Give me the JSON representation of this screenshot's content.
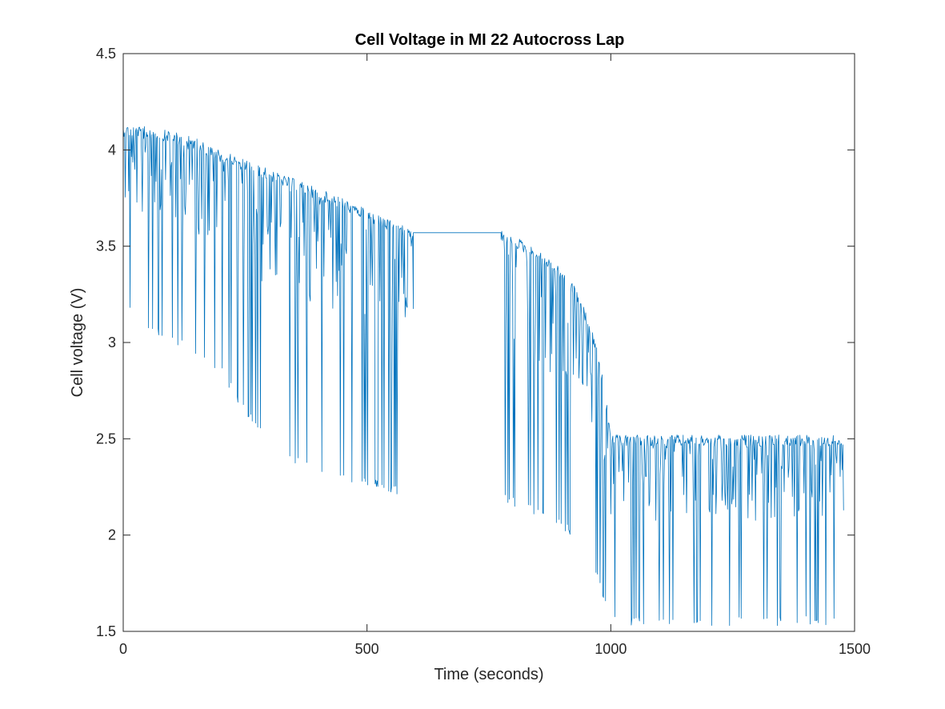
{
  "chart_data": {
    "type": "line",
    "title": "Cell Voltage in MI 22 Autocross Lap",
    "xlabel": "Time (seconds)",
    "ylabel": "Cell voltage (V)",
    "xlim": [
      0,
      1500
    ],
    "ylim": [
      1.5,
      4.5
    ],
    "xticks": [
      0,
      500,
      1000,
      1500
    ],
    "xtick_labels": [
      "0",
      "500",
      "1000",
      "1500"
    ],
    "yticks": [
      1.5,
      2,
      2.5,
      3,
      3.5,
      4,
      4.5
    ],
    "ytick_labels": [
      "1.5",
      "2",
      "2.5",
      "3",
      "3.5",
      "4",
      "4.5"
    ],
    "grid": false,
    "box": true,
    "colors": {
      "line": "#0072BD",
      "axes": "#262626"
    },
    "series": [
      {
        "segments": [
          {
            "x_range": [
              0,
              595
            ],
            "upper_envelope": [
              [
                0,
                4.13
              ],
              [
                50,
                4.12
              ],
              [
                100,
                4.1
              ],
              [
                150,
                4.06
              ],
              [
                200,
                4.0
              ],
              [
                250,
                3.95
              ],
              [
                300,
                3.9
              ],
              [
                350,
                3.85
              ],
              [
                400,
                3.8
              ],
              [
                450,
                3.75
              ],
              [
                500,
                3.69
              ],
              [
                550,
                3.63
              ],
              [
                595,
                3.59
              ]
            ],
            "lower_envelope": [
              [
                0,
                3.2
              ],
              [
                50,
                3.05
              ],
              [
                100,
                3.0
              ],
              [
                150,
                2.92
              ],
              [
                200,
                2.83
              ],
              [
                250,
                2.62
              ],
              [
                300,
                2.5
              ],
              [
                350,
                2.37
              ],
              [
                400,
                2.32
              ],
              [
                450,
                2.28
              ],
              [
                500,
                2.25
              ],
              [
                550,
                2.22
              ],
              [
                595,
                2.19
              ]
            ]
          },
          {
            "x_range": [
              595,
              775
            ],
            "constant_value": 3.57
          },
          {
            "x_range": [
              775,
              1000
            ],
            "upper_envelope": [
              [
                775,
                3.58
              ],
              [
                800,
                3.56
              ],
              [
                850,
                3.48
              ],
              [
                900,
                3.38
              ],
              [
                930,
                3.28
              ],
              [
                950,
                3.15
              ],
              [
                970,
                3.0
              ],
              [
                985,
                2.8
              ],
              [
                995,
                2.62
              ],
              [
                1000,
                2.53
              ]
            ],
            "lower_envelope": [
              [
                775,
                2.18
              ],
              [
                800,
                2.15
              ],
              [
                850,
                2.1
              ],
              [
                900,
                2.03
              ],
              [
                930,
                1.97
              ],
              [
                950,
                1.9
              ],
              [
                970,
                1.79
              ],
              [
                985,
                1.67
              ],
              [
                995,
                1.57
              ],
              [
                1000,
                1.53
              ]
            ]
          },
          {
            "x_range": [
              1000,
              1478
            ],
            "upper_envelope": [
              [
                1000,
                2.52
              ],
              [
                1478,
                2.52
              ]
            ],
            "lower_envelope": [
              [
                1000,
                1.53
              ],
              [
                1478,
                1.53
              ]
            ]
          }
        ]
      }
    ]
  }
}
